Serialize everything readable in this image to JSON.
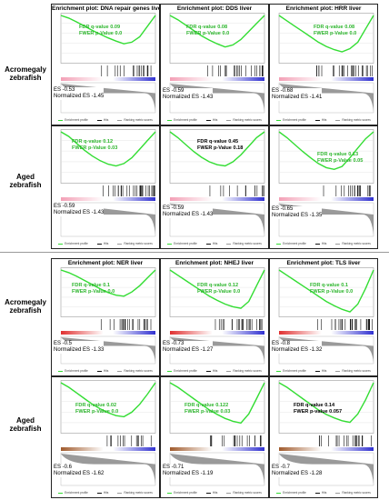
{
  "legend": {
    "enrichment": "Enrichment profile",
    "hits": "Hits",
    "ranking": "Ranking metric scores"
  },
  "rows": {
    "r1": "Acromegaly zebrafish",
    "r2": "Aged zebrafish",
    "r3": "Acromegaly zebrafish",
    "r4": "Aged zebrafish"
  },
  "panels": {
    "p1": {
      "title": "Enrichment plot: DNA repair genes liver",
      "fdr": "FDR q-value 0.09",
      "fwer": "FWER p-Value 0.0",
      "es": "ES -0.53",
      "nes": "Normalized ES -1.45"
    },
    "p2": {
      "title": "Enrichment plot: DDS liver",
      "fdr": "FDR q-value 0.08",
      "fwer": "FWER p-Value 0.0",
      "es": "ES -0.59",
      "nes": "Normalized ES -1.43"
    },
    "p3": {
      "title": "Enrichment plot: HRR liver",
      "fdr": "FDR q-value 0.08",
      "fwer": "FWER p-Value 0.0",
      "es": "ES -0.68",
      "nes": "Normalized ES -1.41"
    },
    "p4": {
      "fdr": "FDR q-value 0.12",
      "fwer": "FWER p-Value 0.03",
      "es": "ES -0.59",
      "nes": "Normalized ES -1.43"
    },
    "p5": {
      "fdr": "FDR q-value 0.45",
      "fwer": "FWER p-Value 0.18",
      "es": "ES -0.59",
      "nes": "Normalized ES -1.43"
    },
    "p6": {
      "fdr": "FDR q-value 0.13",
      "fwer": "FWER p-Value 0.05",
      "es": "ES -0.65",
      "nes": "Normalized ES -1.35"
    },
    "p7": {
      "title": "Enrichment plot: NER liver",
      "fdr": "FDR q-value 0.1",
      "fwer": "FWER p-Value 0.0",
      "es": "ES -0.5",
      "nes": "Normalized ES -1.33"
    },
    "p8": {
      "title": "Enrichment plot: NHEJ liver",
      "fdr": "FDR q-value 0.12",
      "fwer": "FWER p-Value 0.0",
      "es": "ES -0.73",
      "nes": "Normalized ES -1.27"
    },
    "p9": {
      "title": "Enrichment plot: TLS liver",
      "fdr": "FDR q-value 0.1",
      "fwer": "FWER p-Value 0.0",
      "es": "ES -0.8",
      "nes": "Normalized ES -1.32"
    },
    "p10": {
      "fdr": "FDR q-value 0.02",
      "fwer": "FWER p-Value 0.0",
      "es": "ES -0.6",
      "nes": "Normalized ES -1.62"
    },
    "p11": {
      "fdr": "FDR q-value 0.122",
      "fwer": "FWER p-Value 0.03",
      "es": "ES -0.71",
      "nes": "Normalized ES -1.19"
    },
    "p12": {
      "fdr": "FDR q-value 0.14",
      "fwer": "FWER p-value 0.057",
      "es": "ES -0.7",
      "nes": "Normalized ES -1.28"
    }
  },
  "colors": {
    "curve": "#33dd33",
    "green_text": "#2db52d",
    "ranked_red": "#e03030",
    "ranked_blue": "#3030d0",
    "ranked_pink": "#f3a0b6",
    "ranked_brown": "#a05a2c"
  },
  "chart_data": [
    {
      "type": "line",
      "es_curve": [
        0,
        -0.05,
        -0.12,
        -0.2,
        -0.28,
        -0.35,
        -0.42,
        -0.48,
        -0.53,
        -0.5,
        -0.4,
        -0.2,
        0
      ]
    },
    {
      "type": "line",
      "es_curve": [
        0,
        -0.08,
        -0.18,
        -0.28,
        -0.38,
        -0.46,
        -0.53,
        -0.59,
        -0.55,
        -0.45,
        -0.3,
        -0.15,
        0
      ]
    },
    {
      "type": "line",
      "es_curve": [
        0,
        -0.1,
        -0.2,
        -0.3,
        -0.4,
        -0.5,
        -0.58,
        -0.64,
        -0.68,
        -0.62,
        -0.5,
        -0.25,
        0
      ]
    },
    {
      "type": "line",
      "es_curve": [
        0,
        -0.08,
        -0.2,
        -0.32,
        -0.42,
        -0.5,
        -0.56,
        -0.59,
        -0.55,
        -0.45,
        -0.3,
        -0.15,
        0
      ]
    },
    {
      "type": "line",
      "es_curve": [
        0,
        -0.1,
        -0.22,
        -0.34,
        -0.44,
        -0.52,
        -0.57,
        -0.59,
        -0.52,
        -0.4,
        -0.25,
        -0.1,
        0
      ]
    },
    {
      "type": "line",
      "es_curve": [
        0,
        -0.1,
        -0.22,
        -0.34,
        -0.45,
        -0.55,
        -0.62,
        -0.65,
        -0.6,
        -0.45,
        -0.28,
        -0.12,
        0
      ]
    },
    {
      "type": "line",
      "es_curve": [
        0,
        -0.05,
        -0.12,
        -0.2,
        -0.28,
        -0.36,
        -0.43,
        -0.48,
        -0.5,
        -0.42,
        -0.3,
        -0.15,
        0
      ]
    },
    {
      "type": "line",
      "es_curve": [
        0,
        -0.1,
        -0.2,
        -0.3,
        -0.4,
        -0.5,
        -0.58,
        -0.65,
        -0.7,
        -0.73,
        -0.6,
        -0.3,
        0
      ]
    },
    {
      "type": "line",
      "es_curve": [
        0,
        -0.1,
        -0.2,
        -0.3,
        -0.4,
        -0.5,
        -0.6,
        -0.68,
        -0.75,
        -0.8,
        -0.65,
        -0.35,
        0
      ]
    },
    {
      "type": "line",
      "es_curve": [
        0,
        -0.08,
        -0.18,
        -0.28,
        -0.38,
        -0.46,
        -0.53,
        -0.58,
        -0.6,
        -0.52,
        -0.38,
        -0.2,
        0
      ]
    },
    {
      "type": "line",
      "es_curve": [
        0,
        -0.08,
        -0.18,
        -0.28,
        -0.38,
        -0.48,
        -0.56,
        -0.63,
        -0.68,
        -0.71,
        -0.55,
        -0.28,
        0
      ]
    },
    {
      "type": "line",
      "es_curve": [
        0,
        -0.08,
        -0.18,
        -0.28,
        -0.38,
        -0.48,
        -0.56,
        -0.62,
        -0.67,
        -0.7,
        -0.55,
        -0.3,
        0
      ]
    }
  ]
}
